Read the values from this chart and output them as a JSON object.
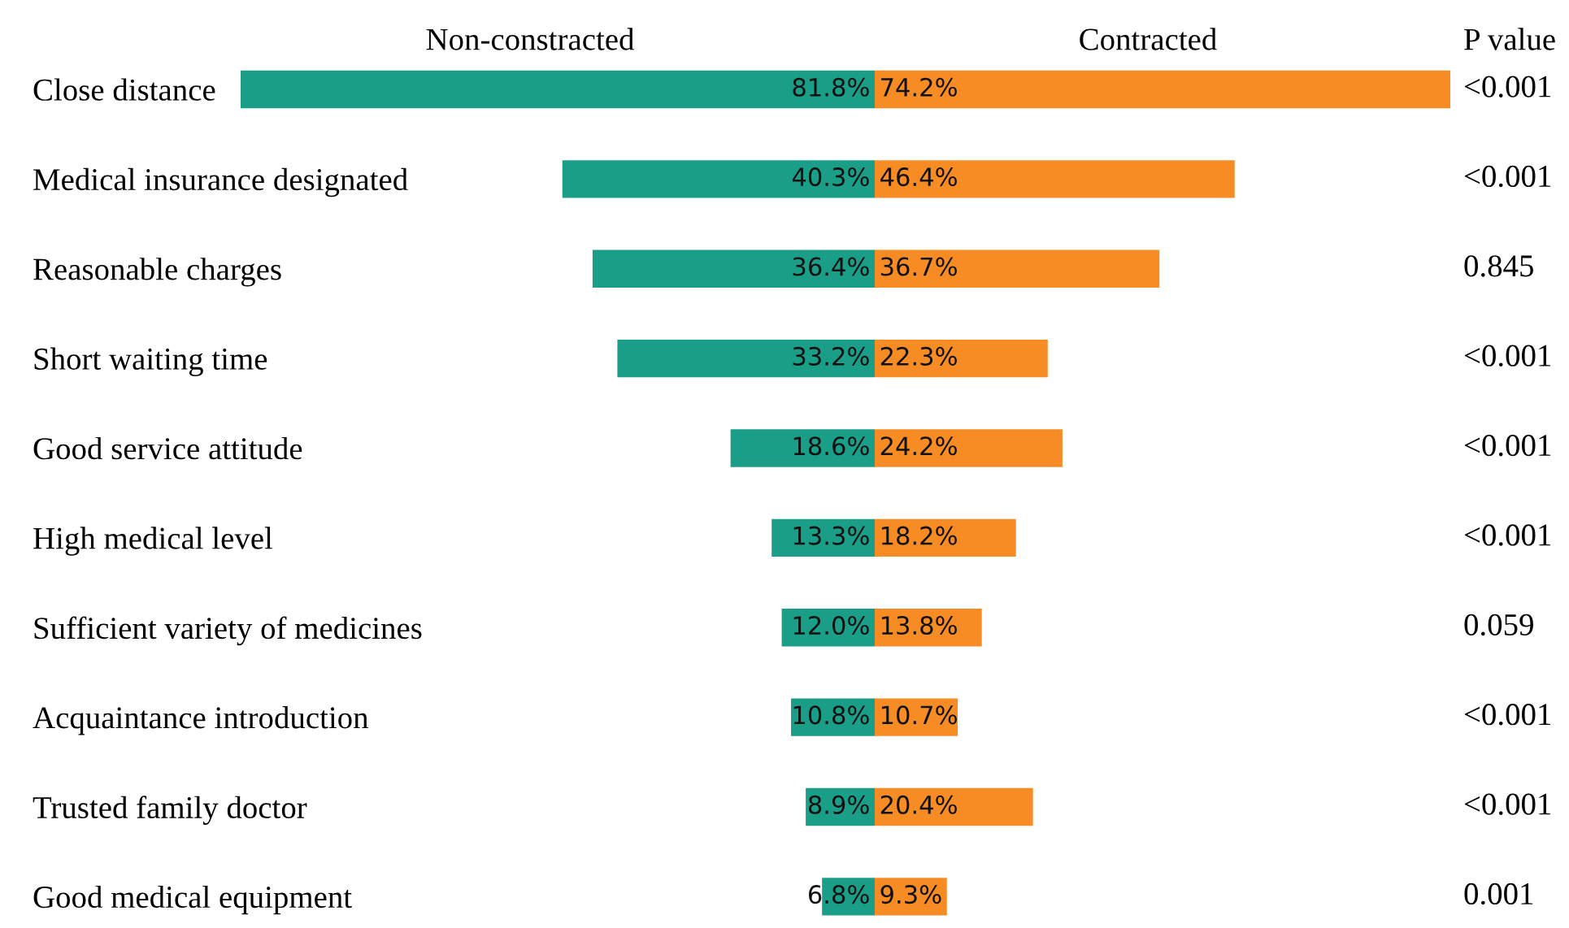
{
  "chart_data": [
    {
      "type": "bar",
      "orientation": "horizontal",
      "data_labels": true,
      "tick_labels": "y",
      "title": "Non-constracted",
      "xlim": [
        81.8,
        0
      ],
      "categories": [
        "Close distance",
        "Medical insurance designated",
        "Reasonable charges",
        "Short waiting time",
        "Good service attitude",
        "High medical level",
        "Sufficient variety of medicines",
        "Acquaintance introduction",
        "Trusted family doctor",
        "Good medical equipment"
      ],
      "series": [
        {
          "color": "#1a9e87",
          "values": [
            81.8,
            40.3,
            36.4,
            33.2,
            18.6,
            13.3,
            12.0,
            10.8,
            8.9,
            6.8
          ],
          "value_labels": [
            "81.8%",
            "40.3%",
            "36.4%",
            "33.2%",
            "18.6%",
            "13.3%",
            "12.0%",
            "10.8%",
            "8.9%",
            "6.8%"
          ]
        }
      ]
    },
    {
      "type": "bar",
      "orientation": "horizontal",
      "data_labels": true,
      "tick_labels": false,
      "title": "Contracted",
      "xlim": [
        0,
        74.2
      ],
      "categories": [
        null,
        null,
        null,
        null,
        null,
        null,
        null,
        null,
        null,
        null
      ],
      "series": [
        {
          "color": "#f78c24",
          "values": [
            74.2,
            46.4,
            36.7,
            22.3,
            24.2,
            18.2,
            13.8,
            10.7,
            20.4,
            9.3
          ],
          "value_labels": [
            "74.2%",
            "46.4%",
            "36.7%",
            "22.3%",
            "24.2%",
            "18.2%",
            "13.8%",
            "10.7%",
            "20.4%",
            "9.3%"
          ]
        }
      ],
      "annotations": [
        "P value",
        "<0.001",
        "<0.001",
        "0.845",
        "<0.001",
        "<0.001",
        "<0.001",
        "0.059",
        "<0.001",
        "<0.001",
        "0.001"
      ]
    }
  ]
}
